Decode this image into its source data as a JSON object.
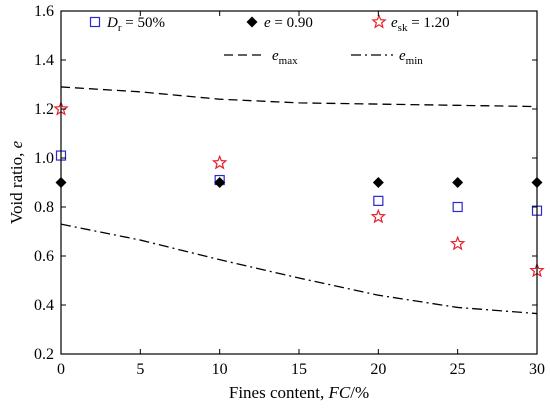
{
  "chart_data": {
    "type": "scatter",
    "xlabel": {
      "text": "Fines content, ",
      "italic": "FC",
      "unit": "/%"
    },
    "ylabel": {
      "text": "Void ratio, ",
      "italic": "e"
    },
    "xlim": [
      0,
      30
    ],
    "ylim": [
      0.2,
      1.6
    ],
    "x_ticks": [
      0,
      5,
      10,
      15,
      20,
      25,
      30
    ],
    "y_ticks": [
      0.2,
      0.4,
      0.6,
      0.8,
      1.0,
      1.2,
      1.4,
      1.6
    ],
    "x_tick_labels": [
      "0",
      "5",
      "10",
      "15",
      "20",
      "25",
      "30"
    ],
    "y_tick_labels": [
      "0.2",
      "0.4",
      "0.6",
      "0.8",
      "1.0",
      "1.2",
      "1.4",
      "1.6"
    ],
    "grid": false,
    "series": [
      {
        "name": "Dr = 50%",
        "legend_main": "D",
        "legend_sub": "r",
        "legend_rest": " = 50%",
        "marker": "open-square",
        "color": "#2a2acc",
        "x": [
          0,
          10,
          20,
          25,
          30
        ],
        "y": [
          1.01,
          0.91,
          0.825,
          0.8,
          0.785
        ]
      },
      {
        "name": "e = 0.90",
        "legend_main": "e",
        "legend_sub": "",
        "legend_rest": " = 0.90",
        "marker": "filled-diamond",
        "color": "#000000",
        "x": [
          0,
          10,
          20,
          25,
          30
        ],
        "y": [
          0.9,
          0.9,
          0.9,
          0.9,
          0.9
        ]
      },
      {
        "name": "esk = 1.20",
        "legend_main": "e",
        "legend_sub": "sk",
        "legend_rest": " = 1.20",
        "marker": "open-star",
        "color": "#e8202a",
        "x": [
          0,
          10,
          20,
          25,
          30
        ],
        "y": [
          1.2,
          0.98,
          0.76,
          0.65,
          0.54
        ]
      },
      {
        "name": "emax",
        "legend_main": "e",
        "legend_sub": "max",
        "legend_rest": "",
        "line": "dashed",
        "color": "#000000",
        "x": [
          0,
          5,
          10,
          15,
          20,
          25,
          30
        ],
        "y": [
          1.29,
          1.27,
          1.24,
          1.225,
          1.22,
          1.215,
          1.21
        ]
      },
      {
        "name": "emin",
        "legend_main": "e",
        "legend_sub": "min",
        "legend_rest": "",
        "line": "dashdot",
        "color": "#000000",
        "x": [
          0,
          5,
          10,
          15,
          20,
          25,
          30
        ],
        "y": [
          0.73,
          0.665,
          0.585,
          0.51,
          0.44,
          0.39,
          0.365
        ]
      }
    ]
  }
}
